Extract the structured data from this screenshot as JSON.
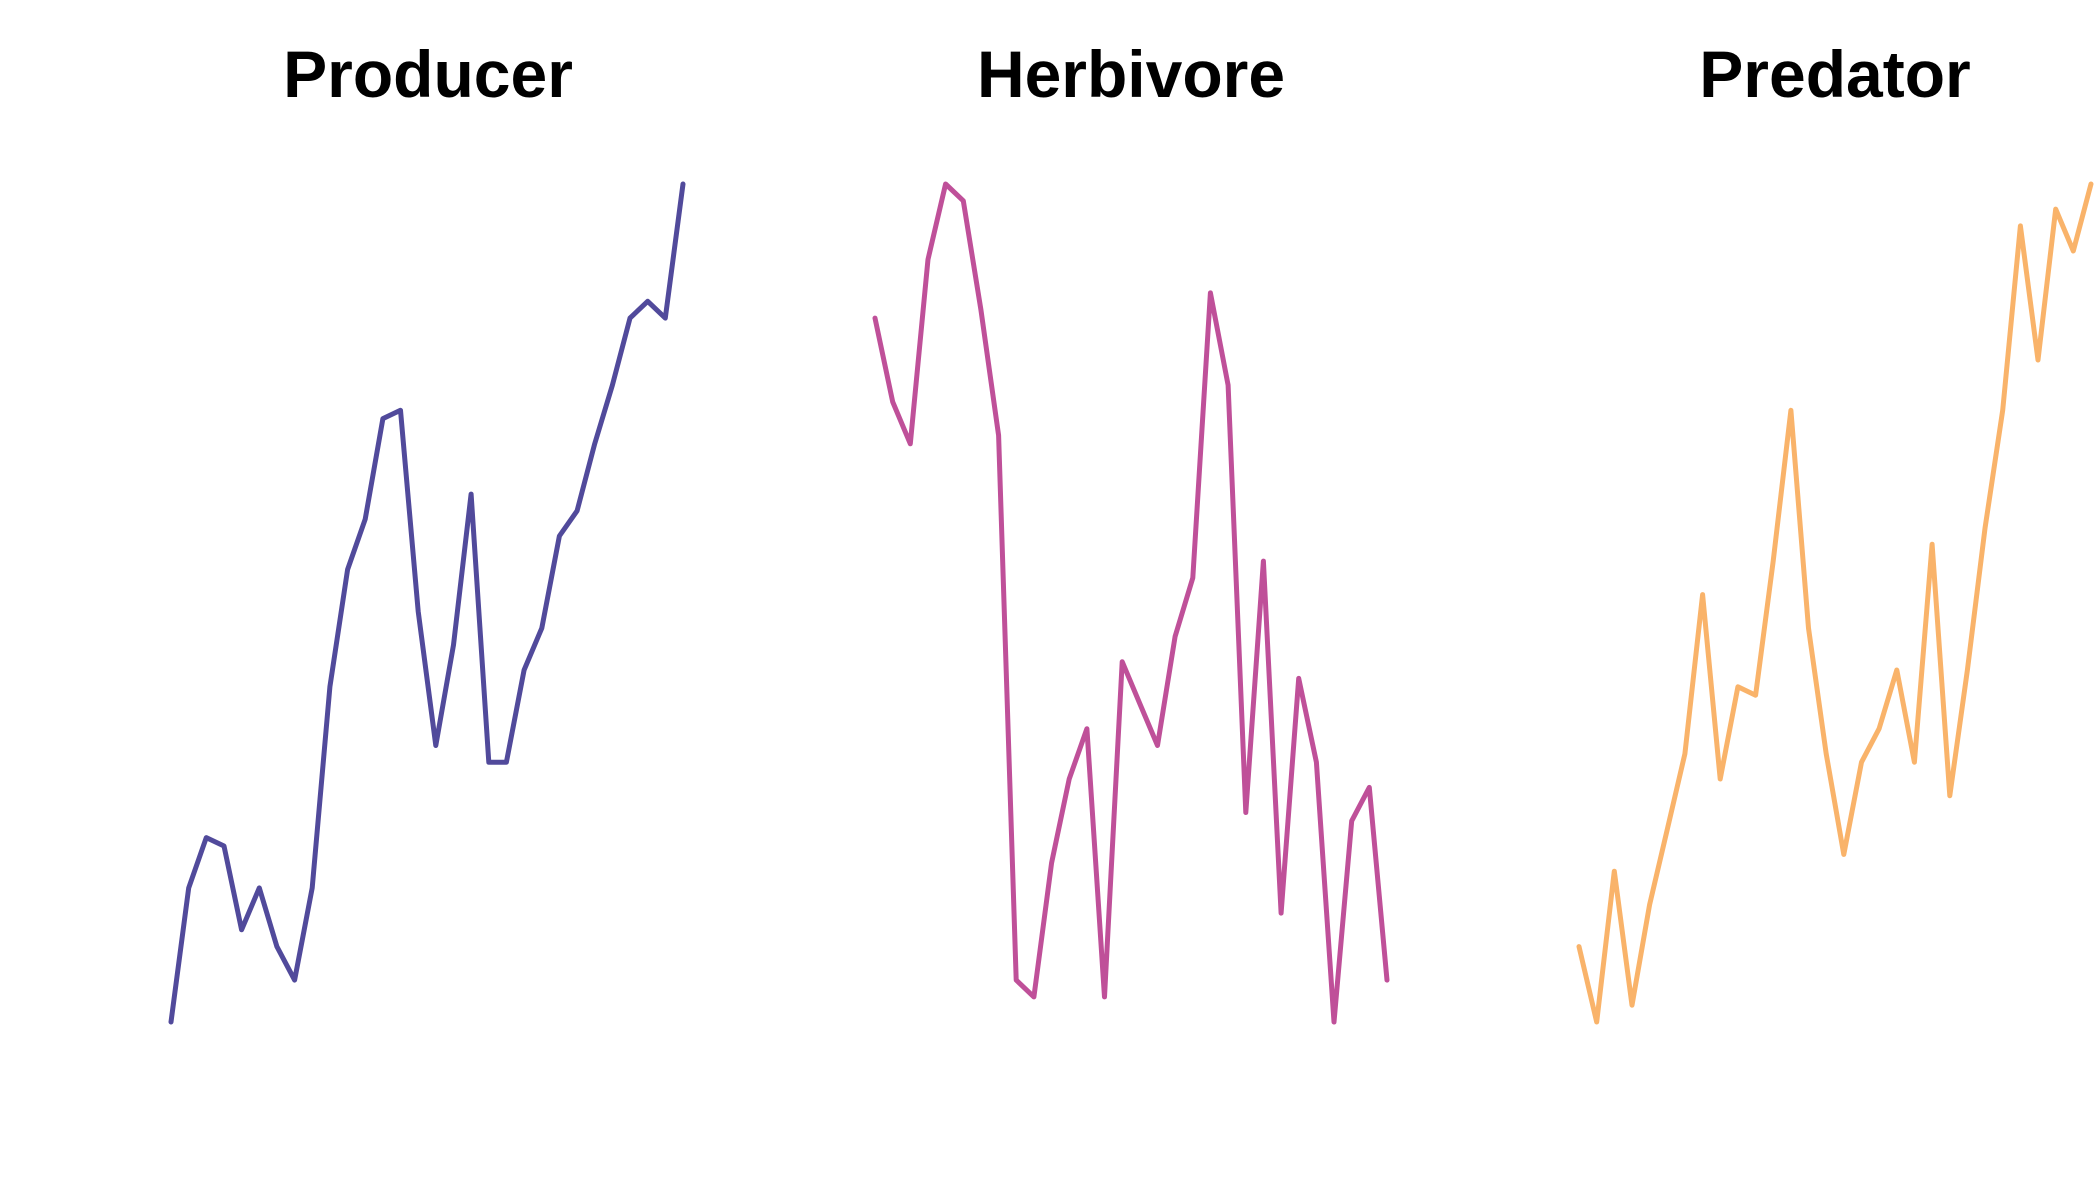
{
  "chart_data": [
    {
      "type": "line",
      "title": "Producer",
      "xlabel": "",
      "ylabel": "",
      "grid": false,
      "color": "#514a9b",
      "x": [
        1,
        2,
        3,
        4,
        5,
        6,
        7,
        8,
        9,
        10,
        11,
        12,
        13,
        14,
        15,
        16,
        17,
        18,
        19,
        20,
        21,
        22,
        23,
        24,
        25,
        26,
        27,
        28,
        29,
        30
      ],
      "values": [
        0.0,
        0.16,
        0.22,
        0.21,
        0.11,
        0.16,
        0.09,
        0.05,
        0.16,
        0.4,
        0.54,
        0.6,
        0.72,
        0.73,
        0.49,
        0.33,
        0.45,
        0.63,
        0.31,
        0.31,
        0.42,
        0.47,
        0.58,
        0.61,
        0.69,
        0.76,
        0.84,
        0.86,
        0.84,
        1.0
      ],
      "ylim": [
        0,
        1
      ]
    },
    {
      "type": "line",
      "title": "Herbivore",
      "xlabel": "",
      "ylabel": "",
      "grid": false,
      "color": "#bf5099",
      "x": [
        1,
        2,
        3,
        4,
        5,
        6,
        7,
        8,
        9,
        10,
        11,
        12,
        13,
        14,
        15,
        16,
        17,
        18,
        19,
        20,
        21,
        22,
        23,
        24,
        25,
        26,
        27,
        28,
        29,
        30
      ],
      "values": [
        0.84,
        0.74,
        0.69,
        0.91,
        1.0,
        0.98,
        0.85,
        0.7,
        0.05,
        0.03,
        0.19,
        0.29,
        0.35,
        0.03,
        0.43,
        0.38,
        0.33,
        0.46,
        0.53,
        0.87,
        0.76,
        0.25,
        0.55,
        0.13,
        0.41,
        0.31,
        0.0,
        0.24,
        0.28,
        0.05
      ],
      "ylim": [
        0,
        1
      ]
    },
    {
      "type": "line",
      "title": "Predator",
      "xlabel": "",
      "ylabel": "",
      "grid": false,
      "color": "#f9b36a",
      "x": [
        1,
        2,
        3,
        4,
        5,
        6,
        7,
        8,
        9,
        10,
        11,
        12,
        13,
        14,
        15,
        16,
        17,
        18,
        19,
        20,
        21,
        22,
        23,
        24,
        25,
        26,
        27,
        28,
        29,
        30
      ],
      "values": [
        0.09,
        0.0,
        0.18,
        0.02,
        0.14,
        0.23,
        0.32,
        0.51,
        0.29,
        0.4,
        0.39,
        0.55,
        0.73,
        0.47,
        0.32,
        0.2,
        0.31,
        0.35,
        0.42,
        0.31,
        0.57,
        0.27,
        0.42,
        0.59,
        0.73,
        0.95,
        0.79,
        0.97,
        0.92,
        1.0
      ],
      "ylim": [
        0,
        1
      ]
    }
  ]
}
